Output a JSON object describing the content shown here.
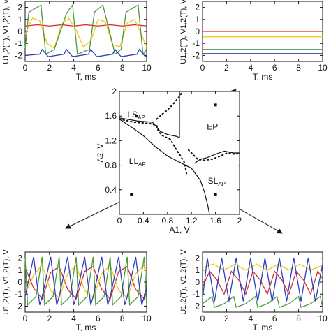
{
  "chart_data": [
    {
      "id": "top-left",
      "type": "line",
      "xlabel": "T, ms",
      "ylabel": "U1,2(T), V1,2(T), V",
      "xlim": [
        0,
        10
      ],
      "ylim": [
        -2.5,
        2.5
      ],
      "xticks": [
        "0",
        "2",
        "4",
        "6",
        "8",
        "10"
      ],
      "yticks": [
        "-2",
        "-1",
        "0",
        "1",
        "2"
      ],
      "grid": false,
      "series": [
        {
          "color": "#d62a2a",
          "x": [
            0,
            1,
            2,
            3,
            4,
            5,
            6,
            7,
            8,
            9,
            10
          ],
          "values": [
            0.45,
            0.55,
            0.45,
            0.55,
            0.45,
            0.55,
            0.45,
            0.55,
            0.45,
            0.55,
            0.45
          ]
        },
        {
          "color": "#f2c40f",
          "x": [
            0,
            0.6,
            1.2,
            1.8,
            2.4,
            3.0,
            3.6,
            4.2,
            4.8,
            5.4,
            6.0,
            6.6,
            7.2,
            7.8,
            8.4,
            9.0,
            9.6,
            10
          ],
          "values": [
            -0.2,
            1.1,
            0.9,
            -1.0,
            -1.4,
            0.6,
            1.1,
            0.1,
            -1.3,
            -0.8,
            1.0,
            0.8,
            -1.1,
            -1.3,
            0.7,
            1.0,
            -0.3,
            -1.3
          ]
        },
        {
          "color": "#4a9a3c",
          "x": [
            0,
            0.3,
            1.3,
            1.7,
            2.4,
            3.4,
            3.9,
            4.3,
            5.3,
            5.7,
            6.4,
            7.4,
            7.9,
            8.3,
            9.3,
            9.7,
            10
          ],
          "values": [
            -1.4,
            1.6,
            2.2,
            -1.9,
            -1.5,
            1.5,
            2.2,
            -1.9,
            -1.5,
            1.6,
            2.2,
            -1.9,
            -1.5,
            1.6,
            2.2,
            -1.9,
            -1.5
          ]
        },
        {
          "color": "#2c3fb8",
          "x": [
            0,
            1.2,
            1.4,
            1.9,
            3.2,
            3.4,
            3.9,
            5.2,
            5.4,
            5.9,
            7.2,
            7.4,
            7.9,
            9.2,
            9.4,
            9.9,
            10
          ],
          "values": [
            -2.0,
            -1.9,
            -1.5,
            -2.1,
            -1.9,
            -1.5,
            -2.1,
            -1.9,
            -1.5,
            -2.1,
            -1.9,
            -1.5,
            -2.1,
            -1.9,
            -1.5,
            -2.1,
            -2.0
          ]
        }
      ]
    },
    {
      "id": "top-right",
      "type": "line",
      "xlabel": "T, ms",
      "ylabel": "U1,2(T), V1,2(T), V",
      "xlim": [
        0,
        10
      ],
      "ylim": [
        -2.5,
        2.5
      ],
      "xticks": [
        "0",
        "2",
        "4",
        "6",
        "8",
        "10"
      ],
      "yticks": [
        "-2",
        "-1",
        "0",
        "1",
        "2"
      ],
      "grid": false,
      "series": [
        {
          "color": "#d62a2a",
          "x": [
            0,
            10
          ],
          "values": [
            0.0,
            0.0
          ]
        },
        {
          "color": "#f2c40f",
          "x": [
            0,
            10
          ],
          "values": [
            -0.45,
            -0.45
          ]
        },
        {
          "color": "#4a9a3c",
          "x": [
            0,
            10
          ],
          "values": [
            -1.5,
            -1.5
          ]
        },
        {
          "color": "#2c3fb8",
          "x": [
            0,
            10
          ],
          "values": [
            -1.85,
            -1.85
          ]
        }
      ]
    },
    {
      "id": "center",
      "type": "scatter",
      "xlabel": "A1, V",
      "ylabel": "A2, V",
      "xlim": [
        0,
        2
      ],
      "ylim": [
        0,
        2
      ],
      "xticks": [
        "0",
        "0.4",
        "0.8",
        "1.2",
        "1.6",
        "2"
      ],
      "yticks": [
        "0.4",
        "0.8",
        "1.2",
        "1.6",
        "2"
      ],
      "regions": [
        {
          "label": "LS",
          "sub": "AP",
          "marker": [
            0.28,
            1.6
          ]
        },
        {
          "label": "EP",
          "sub": "",
          "marker": [
            1.6,
            1.78
          ]
        },
        {
          "label": "LL",
          "sub": "AP",
          "marker": [
            0.2,
            0.32
          ]
        },
        {
          "label": "SL",
          "sub": "AP",
          "marker": [
            1.6,
            0.32
          ]
        }
      ],
      "solid_curve": {
        "x": [
          0.0,
          0.2,
          0.4,
          0.6,
          0.8,
          1.0,
          1.2,
          1.35,
          1.42,
          1.47,
          1.5
        ],
        "y": [
          1.55,
          1.42,
          1.28,
          1.1,
          0.95,
          0.85,
          0.75,
          0.55,
          0.35,
          0.15,
          0.0
        ]
      },
      "solid_upper": {
        "x": [
          0.0,
          0.3,
          0.55,
          0.62,
          0.68,
          0.8,
          0.95,
          1.0
        ],
        "y": [
          1.57,
          1.52,
          1.5,
          1.42,
          1.35,
          1.3,
          1.27,
          1.25
        ]
      },
      "solid_vertical": {
        "x": [
          1.0,
          1.0,
          1.0,
          1.0
        ],
        "y": [
          1.25,
          1.55,
          1.8,
          2.0
        ]
      },
      "solid_right": {
        "x": [
          1.25,
          1.35,
          1.45,
          1.6,
          1.75,
          1.9,
          2.0
        ],
        "y": [
          0.83,
          0.9,
          0.92,
          0.98,
          1.03,
          1.0,
          1.0
        ]
      },
      "dotted_curve": {
        "x": [
          0.0,
          0.25,
          0.5,
          0.62,
          0.65,
          0.72,
          0.85,
          0.95,
          1.02,
          1.08,
          1.1,
          1.12
        ],
        "y": [
          1.55,
          1.5,
          1.48,
          1.45,
          1.35,
          1.28,
          1.22,
          1.05,
          0.95,
          0.85,
          0.75,
          0.65
        ]
      },
      "dotted_upper": {
        "x": [
          0.62,
          0.7,
          0.8,
          0.9,
          1.0,
          1.03,
          1.05
        ],
        "y": [
          1.55,
          1.62,
          1.7,
          1.8,
          1.92,
          1.97,
          2.0
        ]
      },
      "dotted_right": {
        "x": [
          1.15,
          1.22,
          1.3,
          1.42,
          1.55,
          1.68,
          1.8,
          1.92,
          2.0
        ],
        "y": [
          1.05,
          0.98,
          0.9,
          0.88,
          0.9,
          0.95,
          1.0,
          0.98,
          0.99
        ]
      }
    },
    {
      "id": "bottom-left",
      "type": "line",
      "xlabel": "T, ms",
      "ylabel": "U1,2(T), V1,2(T), V",
      "xlim": [
        0,
        10
      ],
      "ylim": [
        -2.5,
        2.5
      ],
      "xticks": [
        "0",
        "2",
        "4",
        "6",
        "8",
        "10"
      ],
      "yticks": [
        "-2",
        "-1",
        "0",
        "1",
        "2"
      ],
      "grid": false,
      "series": [
        {
          "color": "#d62a2a",
          "x": [
            0,
            0.7,
            1.4,
            2.1,
            2.8,
            3.5,
            4.2,
            4.9,
            5.6,
            6.3,
            7.0,
            7.7,
            8.4,
            9.1,
            9.8,
            10
          ],
          "values": [
            1.2,
            -0.5,
            -1.4,
            0.8,
            1.3,
            -0.6,
            -1.4,
            0.9,
            1.3,
            -0.6,
            -1.4,
            0.9,
            1.3,
            -0.6,
            -1.4,
            -0.8
          ]
        },
        {
          "color": "#f2c40f",
          "x": [
            0,
            0.7,
            1.4,
            2.1,
            2.8,
            3.5,
            4.2,
            4.9,
            5.6,
            6.3,
            7.0,
            7.7,
            8.4,
            9.1,
            9.8,
            10
          ],
          "values": [
            -1.0,
            0.6,
            1.4,
            -0.7,
            -1.3,
            0.7,
            1.4,
            -0.7,
            -1.3,
            0.7,
            1.4,
            -0.7,
            -1.3,
            0.7,
            1.4,
            1.0
          ]
        },
        {
          "color": "#4a9a3c",
          "x": [
            0,
            0.2,
            0.9,
            1.4,
            1.6,
            2.3,
            2.8,
            3.0,
            3.7,
            4.2,
            4.4,
            5.1,
            5.6,
            5.8,
            6.5,
            7.0,
            7.2,
            7.9,
            8.4,
            8.6,
            9.3,
            9.8,
            10
          ],
          "values": [
            2.0,
            -1.9,
            -1.2,
            2.1,
            -1.9,
            -1.2,
            2.1,
            -1.9,
            -1.2,
            2.1,
            -1.9,
            -1.2,
            2.1,
            -1.9,
            -1.2,
            2.1,
            -1.9,
            -1.2,
            2.1,
            -1.9,
            -1.2,
            2.1,
            -1.9
          ]
        },
        {
          "color": "#2c3fb8",
          "x": [
            0,
            0.7,
            1.2,
            1.4,
            2.1,
            2.6,
            2.8,
            3.5,
            4.0,
            4.2,
            4.9,
            5.4,
            5.6,
            6.3,
            6.8,
            7.0,
            7.7,
            8.2,
            8.4,
            9.1,
            9.6,
            9.8,
            10
          ],
          "values": [
            -1.2,
            2.1,
            -1.9,
            -1.2,
            2.1,
            -1.9,
            -1.2,
            2.1,
            -1.9,
            -1.2,
            2.1,
            -1.9,
            -1.2,
            2.1,
            -1.9,
            -1.2,
            2.1,
            -1.9,
            -1.2,
            2.1,
            -1.9,
            -1.2,
            -0.5
          ]
        }
      ]
    },
    {
      "id": "bottom-right",
      "type": "line",
      "xlabel": "T, ms",
      "ylabel": "U1,2(T), V1,2(T), V",
      "xlim": [
        0,
        10
      ],
      "ylim": [
        -2.5,
        2.5
      ],
      "xticks": [
        "0",
        "2",
        "4",
        "6",
        "8",
        "10"
      ],
      "yticks": [
        "-2",
        "-1",
        "0",
        "1",
        "2"
      ],
      "grid": false,
      "series": [
        {
          "color": "#d62a2a",
          "x": [
            0,
            0.6,
            1.2,
            1.8,
            2.4,
            3.0,
            3.6,
            4.2,
            4.8,
            5.4,
            6.0,
            6.6,
            7.2,
            7.8,
            8.4,
            9.0,
            9.6,
            10
          ],
          "values": [
            -0.4,
            0.9,
            0.2,
            -1.0,
            0.9,
            0.2,
            -1.0,
            0.9,
            0.2,
            -1.0,
            0.9,
            0.2,
            -1.0,
            0.9,
            0.2,
            -1.0,
            0.9,
            0.3
          ]
        },
        {
          "color": "#f2c40f",
          "x": [
            0,
            0.9,
            1.8,
            2.7,
            3.6,
            4.5,
            5.4,
            6.3,
            7.2,
            8.1,
            9.0,
            10
          ],
          "values": [
            1.2,
            1.5,
            1.0,
            1.5,
            1.0,
            1.5,
            1.0,
            1.5,
            1.0,
            1.5,
            1.0,
            1.4
          ]
        },
        {
          "color": "#4a9a3c",
          "x": [
            0,
            0.8,
            1.0,
            1.8,
            2.6,
            2.8,
            3.6,
            4.4,
            4.6,
            5.4,
            6.2,
            6.4,
            7.2,
            8.0,
            8.2,
            9.0,
            9.8,
            10
          ],
          "values": [
            -1.8,
            -1.2,
            -2.1,
            -1.8,
            -1.2,
            -2.1,
            -1.8,
            -1.2,
            -2.1,
            -1.8,
            -1.2,
            -2.1,
            -1.8,
            -1.2,
            -2.1,
            -1.8,
            -1.2,
            -2.1
          ]
        },
        {
          "color": "#2c3fb8",
          "x": [
            0,
            0.4,
            1.0,
            1.6,
            2.2,
            2.8,
            3.4,
            4.0,
            4.6,
            5.2,
            5.8,
            6.4,
            7.0,
            7.6,
            8.2,
            8.8,
            9.4,
            10
          ],
          "values": [
            -1.4,
            2.0,
            -1.6,
            2.0,
            -1.6,
            2.0,
            -1.6,
            2.0,
            -1.6,
            2.0,
            -1.6,
            2.0,
            -1.6,
            2.0,
            -1.6,
            2.0,
            -1.6,
            1.5
          ]
        }
      ]
    }
  ]
}
